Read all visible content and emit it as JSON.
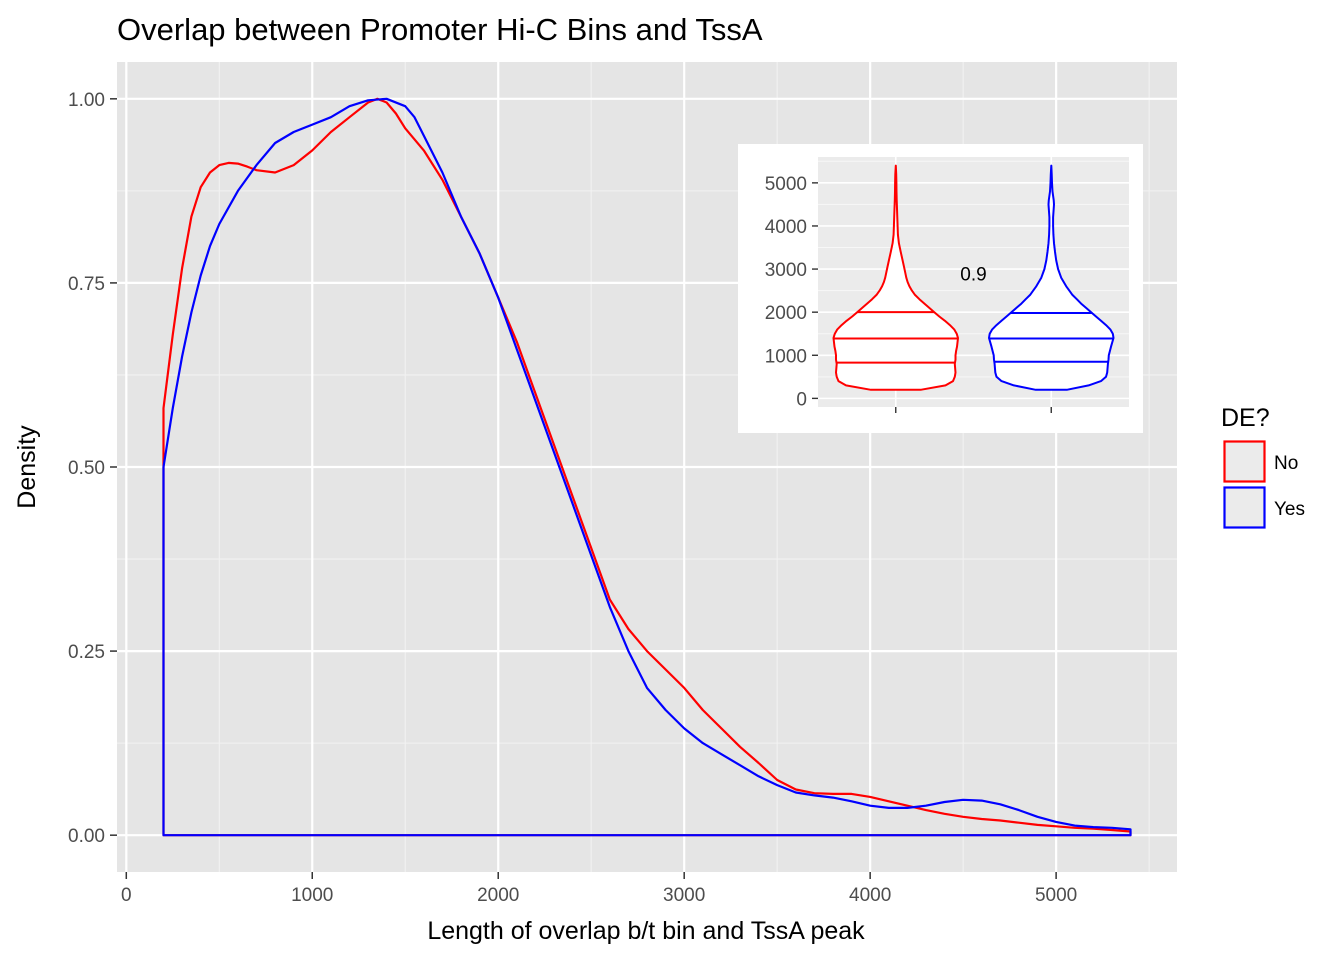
{
  "chart_data": [
    {
      "type": "line",
      "chart_kind": "density",
      "title": "Overlap between Promoter Hi-C Bins and TssA",
      "xlabel": "Length of overlap b/t bin and TssA peak",
      "ylabel": "Density",
      "xlim": [
        -50,
        5650
      ],
      "ylim": [
        -0.05,
        1.05
      ],
      "x_ticks": [
        0,
        1000,
        2000,
        3000,
        4000,
        5000
      ],
      "y_ticks": [
        0.0,
        0.25,
        0.5,
        0.75,
        1.0
      ],
      "x_tick_labels": [
        "0",
        "1000",
        "2000",
        "3000",
        "4000",
        "5000"
      ],
      "y_tick_labels": [
        "0.00",
        "0.25",
        "0.50",
        "0.75",
        "1.00"
      ],
      "grid": true,
      "background": "#e5e5e5",
      "legend": {
        "title": "DE?",
        "placement": "right",
        "entries": [
          {
            "label": "No",
            "color": "#ff0000"
          },
          {
            "label": "Yes",
            "color": "#0000ff"
          }
        ]
      },
      "series": [
        {
          "name": "No",
          "color": "#ff0000",
          "x": [
            200,
            200,
            250,
            300,
            350,
            400,
            450,
            500,
            550,
            600,
            650,
            700,
            800,
            900,
            1000,
            1100,
            1200,
            1300,
            1350,
            1400,
            1450,
            1500,
            1600,
            1700,
            1800,
            1900,
            2000,
            2100,
            2200,
            2300,
            2400,
            2500,
            2600,
            2700,
            2800,
            2900,
            3000,
            3100,
            3200,
            3300,
            3400,
            3500,
            3600,
            3700,
            3800,
            3900,
            4000,
            4100,
            4200,
            4300,
            4400,
            4500,
            4600,
            4700,
            4800,
            4900,
            5000,
            5100,
            5200,
            5300,
            5400,
            5400,
            200
          ],
          "y": [
            0.0,
            0.58,
            0.68,
            0.77,
            0.84,
            0.88,
            0.9,
            0.91,
            0.913,
            0.912,
            0.908,
            0.903,
            0.9,
            0.91,
            0.93,
            0.955,
            0.975,
            0.995,
            1.0,
            0.995,
            0.98,
            0.96,
            0.93,
            0.89,
            0.84,
            0.79,
            0.73,
            0.67,
            0.6,
            0.53,
            0.46,
            0.39,
            0.32,
            0.28,
            0.25,
            0.225,
            0.2,
            0.17,
            0.145,
            0.12,
            0.098,
            0.075,
            0.062,
            0.057,
            0.056,
            0.056,
            0.052,
            0.046,
            0.04,
            0.034,
            0.029,
            0.025,
            0.022,
            0.02,
            0.017,
            0.014,
            0.012,
            0.01,
            0.009,
            0.007,
            0.005,
            0.0,
            0.0
          ]
        },
        {
          "name": "Yes",
          "color": "#0000ff",
          "x": [
            200,
            200,
            250,
            300,
            350,
            400,
            450,
            500,
            600,
            700,
            800,
            900,
            1000,
            1100,
            1200,
            1300,
            1400,
            1500,
            1550,
            1600,
            1700,
            1800,
            1900,
            2000,
            2100,
            2200,
            2300,
            2400,
            2500,
            2600,
            2700,
            2800,
            2900,
            3000,
            3100,
            3200,
            3300,
            3400,
            3500,
            3600,
            3700,
            3800,
            3900,
            4000,
            4100,
            4200,
            4300,
            4400,
            4500,
            4600,
            4700,
            4800,
            4900,
            5000,
            5100,
            5200,
            5300,
            5400,
            5400,
            200
          ],
          "y": [
            0.0,
            0.5,
            0.58,
            0.65,
            0.71,
            0.76,
            0.8,
            0.83,
            0.875,
            0.91,
            0.94,
            0.955,
            0.965,
            0.975,
            0.99,
            0.998,
            1.0,
            0.99,
            0.975,
            0.95,
            0.9,
            0.84,
            0.79,
            0.73,
            0.66,
            0.59,
            0.52,
            0.45,
            0.38,
            0.31,
            0.25,
            0.2,
            0.17,
            0.145,
            0.125,
            0.11,
            0.095,
            0.08,
            0.068,
            0.058,
            0.054,
            0.051,
            0.046,
            0.04,
            0.037,
            0.037,
            0.04,
            0.045,
            0.048,
            0.047,
            0.042,
            0.034,
            0.025,
            0.018,
            0.013,
            0.011,
            0.01,
            0.008,
            0.0,
            0.0
          ]
        }
      ]
    },
    {
      "type": "violin",
      "inset": true,
      "background": "#ebebeb",
      "ylim": [
        -200,
        5600
      ],
      "y_ticks": [
        0,
        1000,
        2000,
        3000,
        4000,
        5000
      ],
      "y_tick_labels": [
        "0",
        "1000",
        "2000",
        "3000",
        "4000",
        "5000"
      ],
      "annotation": "0.9",
      "annotation_value": 2900,
      "series": [
        {
          "name": "No",
          "color": "#ff0000",
          "quantiles": [
            830,
            1390,
            2000
          ],
          "profile": [
            [
              200,
              0.4
            ],
            [
              300,
              0.8
            ],
            [
              400,
              0.92
            ],
            [
              500,
              0.95
            ],
            [
              600,
              0.96
            ],
            [
              800,
              0.95
            ],
            [
              900,
              0.96
            ],
            [
              1000,
              0.96
            ],
            [
              1100,
              0.97
            ],
            [
              1200,
              0.985
            ],
            [
              1400,
              1.0
            ],
            [
              1500,
              0.98
            ],
            [
              1600,
              0.94
            ],
            [
              1700,
              0.87
            ],
            [
              1800,
              0.79
            ],
            [
              1900,
              0.7
            ],
            [
              2000,
              0.62
            ],
            [
              2100,
              0.54
            ],
            [
              2200,
              0.46
            ],
            [
              2300,
              0.38
            ],
            [
              2400,
              0.31
            ],
            [
              2500,
              0.26
            ],
            [
              2600,
              0.22
            ],
            [
              2700,
              0.19
            ],
            [
              2800,
              0.17
            ],
            [
              3000,
              0.14
            ],
            [
              3200,
              0.11
            ],
            [
              3400,
              0.08
            ],
            [
              3600,
              0.05
            ],
            [
              3800,
              0.035
            ],
            [
              4000,
              0.03
            ],
            [
              4200,
              0.025
            ],
            [
              4400,
              0.02
            ],
            [
              4600,
              0.015
            ],
            [
              4800,
              0.012
            ],
            [
              5000,
              0.01
            ],
            [
              5200,
              0.008
            ],
            [
              5400,
              0.0
            ]
          ]
        },
        {
          "name": "Yes",
          "color": "#0000ff",
          "quantiles": [
            850,
            1390,
            1980
          ],
          "profile": [
            [
              200,
              0.25
            ],
            [
              300,
              0.6
            ],
            [
              400,
              0.8
            ],
            [
              500,
              0.88
            ],
            [
              600,
              0.9
            ],
            [
              800,
              0.91
            ],
            [
              900,
              0.92
            ],
            [
              1000,
              0.925
            ],
            [
              1200,
              0.96
            ],
            [
              1400,
              1.0
            ],
            [
              1500,
              0.99
            ],
            [
              1600,
              0.95
            ],
            [
              1700,
              0.88
            ],
            [
              1800,
              0.8
            ],
            [
              1900,
              0.72
            ],
            [
              2000,
              0.64
            ],
            [
              2100,
              0.56
            ],
            [
              2200,
              0.48
            ],
            [
              2300,
              0.41
            ],
            [
              2400,
              0.34
            ],
            [
              2500,
              0.29
            ],
            [
              2600,
              0.24
            ],
            [
              2700,
              0.2
            ],
            [
              2800,
              0.16
            ],
            [
              3000,
              0.11
            ],
            [
              3200,
              0.08
            ],
            [
              3400,
              0.06
            ],
            [
              3600,
              0.045
            ],
            [
              3800,
              0.035
            ],
            [
              4000,
              0.03
            ],
            [
              4200,
              0.03
            ],
            [
              4400,
              0.04
            ],
            [
              4500,
              0.045
            ],
            [
              4600,
              0.04
            ],
            [
              4800,
              0.02
            ],
            [
              5000,
              0.012
            ],
            [
              5200,
              0.008
            ],
            [
              5400,
              0.0
            ]
          ]
        }
      ]
    }
  ]
}
